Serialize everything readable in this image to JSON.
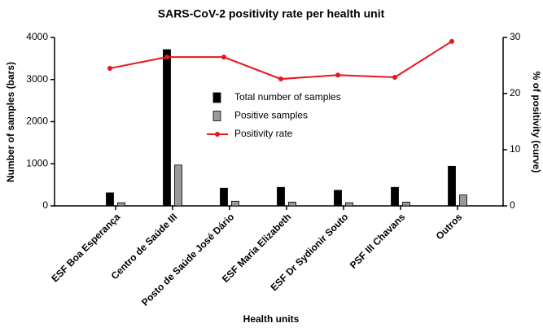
{
  "chart_data": {
    "type": "bar",
    "title": "SARS-CoV-2 positivity rate per health unit",
    "x_label": "Health units",
    "y_label": "Number of samples (bars)",
    "y2_label": "% of positivity (curve)",
    "categories": [
      "ESF Boa Esperança",
      "Centro de Saúde III",
      "Posto de Saúde José Dário",
      "ESF Maria Elizabeth",
      "ESF Dr Sydionir Souto",
      "PSF III Chavans",
      "Outros"
    ],
    "series": [
      {
        "name": "Total number of samples",
        "color": "#000000",
        "type": "bar",
        "values": [
          310,
          3710,
          420,
          440,
          370,
          440,
          940
        ]
      },
      {
        "name": "Positive samples",
        "color": "#999999",
        "type": "bar",
        "values": [
          75,
          970,
          110,
          90,
          75,
          90,
          260
        ]
      },
      {
        "name": "Positivity rate",
        "color": "#e8141b",
        "type": "line",
        "axis": "y2",
        "values": [
          24.5,
          26.5,
          26.5,
          22.6,
          23.3,
          22.9,
          29.3
        ]
      }
    ],
    "ylim": [
      0,
      4000
    ],
    "yticks": [
      0,
      1000,
      2000,
      3000,
      4000
    ],
    "y2lim": [
      0,
      30
    ],
    "y2ticks": [
      0,
      10,
      20,
      30
    ],
    "grid": false,
    "legend": "center"
  }
}
